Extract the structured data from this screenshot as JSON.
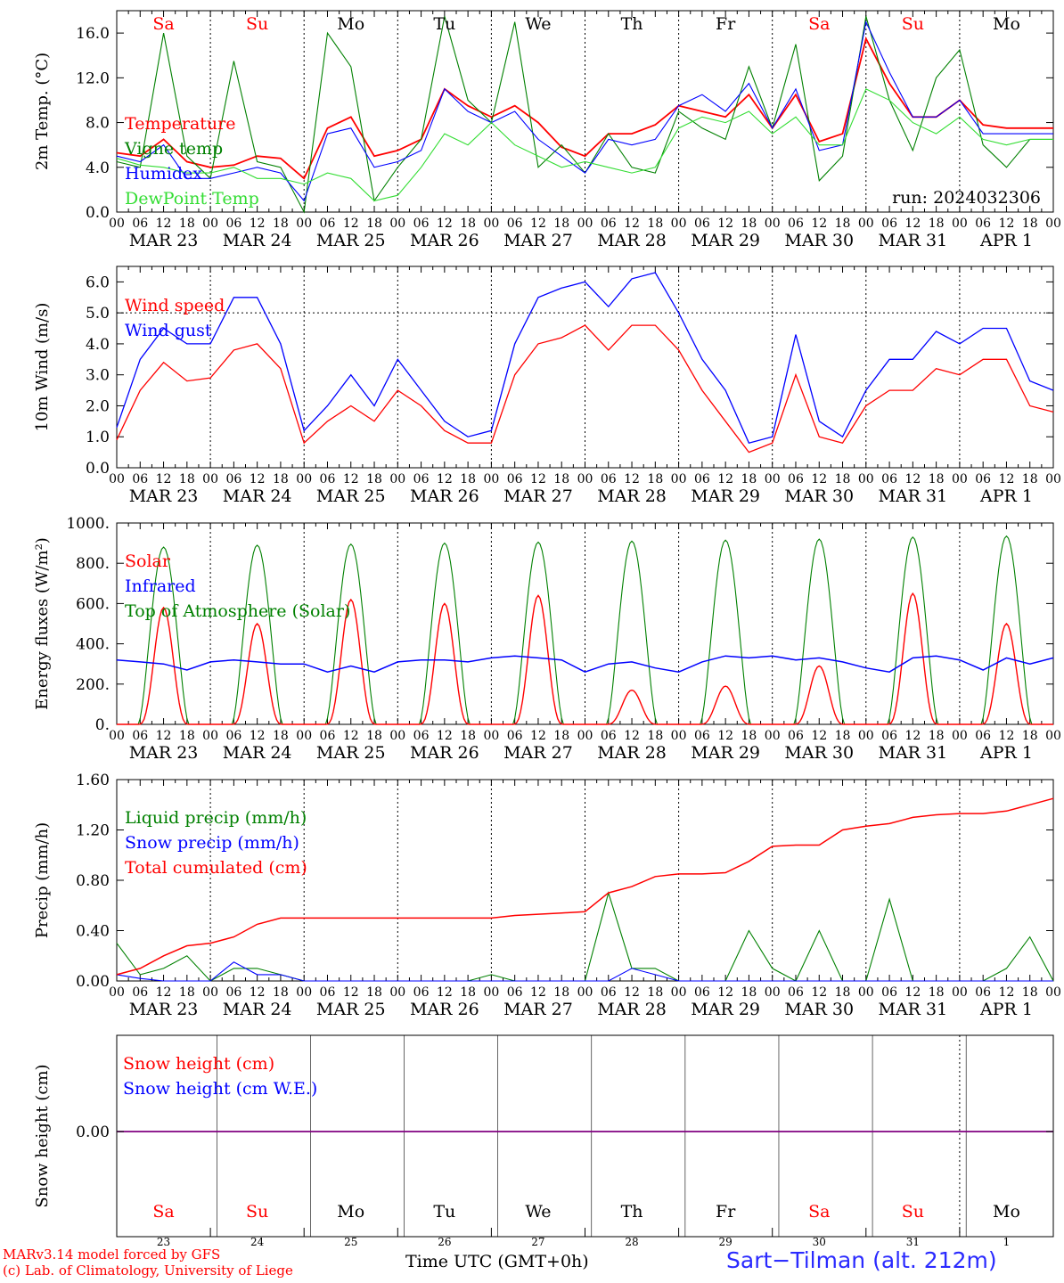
{
  "colors": {
    "red": "#ff0000",
    "green": "#008000",
    "blue": "#0000ff",
    "lightgreen": "#33dd33",
    "purple": "#800080",
    "black": "#000000"
  },
  "axis": {
    "hour_labels": [
      "00",
      "06",
      "12",
      "18"
    ],
    "day_labels": [
      "MAR 23",
      "MAR 24",
      "MAR 25",
      "MAR 26",
      "MAR 27",
      "MAR 28",
      "MAR 29",
      "MAR 30",
      "MAR 31",
      "APR  1"
    ],
    "weekdays": [
      {
        "label": "Sa",
        "color": "#ff0000"
      },
      {
        "label": "Su",
        "color": "#ff0000"
      },
      {
        "label": "Mo",
        "color": "#000000"
      },
      {
        "label": "Tu",
        "color": "#000000"
      },
      {
        "label": "We",
        "color": "#000000"
      },
      {
        "label": "Th",
        "color": "#000000"
      },
      {
        "label": "Fr",
        "color": "#000000"
      },
      {
        "label": "Sa",
        "color": "#ff0000"
      },
      {
        "label": "Su",
        "color": "#ff0000"
      },
      {
        "label": "Mo",
        "color": "#000000"
      }
    ],
    "day_numbers": [
      "23",
      "24",
      "25",
      "26",
      "27",
      "28",
      "29",
      "30",
      "31",
      "1"
    ]
  },
  "footer": {
    "model_line": "MARv3.14 model forced by GFS",
    "credit_line": "(c) Lab. of Climatology, University of Liege",
    "time_label": "Time UTC (GMT+0h)",
    "station": "Sart−Tilman (alt. 212m)"
  },
  "chart_data": [
    {
      "type": "line",
      "ylabel": "2m Temp. (°C)",
      "ylim": [
        0,
        18
      ],
      "yticks": [
        "0.0",
        "4.0",
        "8.0",
        "12.0",
        "16.0"
      ],
      "ytick_values": [
        0,
        4,
        8,
        12,
        16
      ],
      "annotation": "run: 2024032306",
      "x_hours": [
        0,
        6,
        12,
        18,
        24,
        30,
        36,
        42,
        48,
        54,
        60,
        66,
        72,
        78,
        84,
        90,
        96,
        102,
        108,
        114,
        120,
        126,
        132,
        138,
        144,
        150,
        156,
        162,
        168,
        174,
        180,
        186,
        192,
        198,
        204,
        210,
        216,
        222,
        228,
        234,
        240
      ],
      "series": [
        {
          "name": "Temperature",
          "color": "#ff0000",
          "values": [
            5.3,
            5.0,
            6.5,
            4.5,
            4.0,
            4.2,
            5.0,
            4.8,
            3.0,
            7.5,
            8.5,
            5.0,
            5.5,
            6.5,
            11.0,
            9.5,
            8.5,
            9.5,
            8.0,
            5.8,
            5.0,
            7.0,
            7.0,
            7.8,
            9.5,
            9.0,
            8.5,
            10.5,
            7.5,
            10.5,
            6.3,
            7.0,
            15.5,
            11.5,
            8.5,
            8.5,
            10.0,
            7.8,
            7.5,
            7.5,
            7.5
          ]
        },
        {
          "name": "Vigne temp",
          "color": "#008000",
          "values": [
            4.5,
            4.0,
            16.0,
            5.0,
            3.0,
            13.5,
            4.5,
            4.0,
            0.0,
            16.0,
            13.0,
            1.0,
            4.0,
            6.5,
            17.5,
            10.0,
            8.0,
            17.0,
            4.0,
            6.0,
            3.5,
            7.0,
            4.0,
            3.5,
            9.0,
            7.5,
            6.5,
            13.0,
            7.5,
            15.0,
            2.8,
            5.0,
            17.5,
            10.0,
            5.5,
            12.0,
            14.5,
            6.0,
            4.0,
            6.5,
            6.5
          ]
        },
        {
          "name": "Humidex",
          "color": "#0000ff",
          "values": [
            5.0,
            4.5,
            6.0,
            3.0,
            3.0,
            3.5,
            4.0,
            3.5,
            1.0,
            7.0,
            7.5,
            4.0,
            4.5,
            5.5,
            11.0,
            9.0,
            8.0,
            9.0,
            6.5,
            5.0,
            3.5,
            6.5,
            6.0,
            6.5,
            9.5,
            10.5,
            9.0,
            11.5,
            7.5,
            11.0,
            5.5,
            6.0,
            17.0,
            12.5,
            8.5,
            8.5,
            10.0,
            7.0,
            7.0,
            7.0,
            7.0
          ]
        },
        {
          "name": "DewPoint Temp",
          "color": "#33dd33",
          "values": [
            4.8,
            4.2,
            4.0,
            3.5,
            3.5,
            4.0,
            3.0,
            3.0,
            2.5,
            3.5,
            3.0,
            1.0,
            1.5,
            4.0,
            7.0,
            6.0,
            8.0,
            6.0,
            5.0,
            4.0,
            4.5,
            4.0,
            3.5,
            4.0,
            7.5,
            8.5,
            8.0,
            9.0,
            7.0,
            8.5,
            6.0,
            6.0,
            11.0,
            10.0,
            8.0,
            7.0,
            8.5,
            6.5,
            6.0,
            6.5,
            6.5
          ]
        }
      ]
    },
    {
      "type": "line",
      "ylabel": "10m Wind (m/s)",
      "ylim": [
        0,
        6.5
      ],
      "yticks": [
        "0.0",
        "1.0",
        "2.0",
        "3.0",
        "4.0",
        "5.0",
        "6.0"
      ],
      "ytick_values": [
        0,
        1,
        2,
        3,
        4,
        5,
        6
      ],
      "x_hours": [
        0,
        6,
        12,
        18,
        24,
        30,
        36,
        42,
        48,
        54,
        60,
        66,
        72,
        78,
        84,
        90,
        96,
        102,
        108,
        114,
        120,
        126,
        132,
        138,
        144,
        150,
        156,
        162,
        168,
        174,
        180,
        186,
        192,
        198,
        204,
        210,
        216,
        222,
        228,
        234,
        240
      ],
      "series": [
        {
          "name": "Wind speed",
          "color": "#ff0000",
          "values": [
            0.9,
            2.5,
            3.4,
            2.8,
            2.9,
            3.8,
            4.0,
            3.2,
            0.8,
            1.5,
            2.0,
            1.5,
            2.5,
            2.0,
            1.2,
            0.8,
            0.8,
            3.0,
            4.0,
            4.2,
            4.6,
            3.8,
            4.6,
            4.6,
            3.8,
            2.5,
            1.5,
            0.5,
            0.8,
            3.0,
            1.0,
            0.8,
            2.0,
            2.5,
            2.5,
            3.2,
            3.0,
            3.5,
            3.5,
            2.0,
            1.8
          ]
        },
        {
          "name": "Wind gust",
          "color": "#0000ff",
          "values": [
            1.3,
            3.5,
            4.5,
            4.0,
            4.0,
            5.5,
            5.5,
            4.0,
            1.2,
            2.0,
            3.0,
            2.0,
            3.5,
            2.5,
            1.5,
            1.0,
            1.2,
            4.0,
            5.5,
            5.8,
            6.0,
            5.2,
            6.1,
            6.3,
            5.0,
            3.5,
            2.5,
            0.8,
            1.0,
            4.3,
            1.5,
            1.0,
            2.5,
            3.5,
            3.5,
            4.4,
            4.0,
            4.5,
            4.5,
            2.8,
            2.5
          ]
        }
      ]
    },
    {
      "type": "line",
      "ylabel": "Energy fluxes (W/m²)",
      "ylim": [
        0,
        1000
      ],
      "yticks": [
        "0.",
        "200.",
        "400.",
        "600.",
        "800.",
        "1000."
      ],
      "ytick_values": [
        0,
        200,
        400,
        600,
        800,
        1000
      ],
      "series": [
        {
          "name": "Solar",
          "color": "#ff0000",
          "day_peaks": [
            580,
            500,
            620,
            600,
            640,
            170,
            190,
            290,
            650,
            500
          ]
        },
        {
          "name": "Infrared",
          "color": "#0000ff",
          "values": [
            320,
            310,
            300,
            270,
            310,
            320,
            310,
            300,
            300,
            260,
            290,
            260,
            310,
            320,
            320,
            310,
            330,
            340,
            330,
            320,
            260,
            300,
            310,
            280,
            260,
            310,
            340,
            330,
            340,
            320,
            330,
            310,
            280,
            260,
            330,
            340,
            320,
            270,
            330,
            300,
            330
          ]
        },
        {
          "name": "Top of Atmosphere (Solar)",
          "color": "#008000",
          "day_peaks": [
            880,
            890,
            895,
            900,
            905,
            910,
            915,
            920,
            930,
            935
          ]
        }
      ]
    },
    {
      "type": "line",
      "ylabel": "Precip (mm/h)",
      "ylim": [
        0,
        1.6
      ],
      "yticks": [
        "0.00",
        "0.40",
        "0.80",
        "1.20",
        "1.60"
      ],
      "ytick_values": [
        0,
        0.4,
        0.8,
        1.2,
        1.6
      ],
      "x_hours": [
        0,
        6,
        12,
        18,
        24,
        30,
        36,
        42,
        48,
        54,
        60,
        66,
        72,
        78,
        84,
        90,
        96,
        102,
        108,
        114,
        120,
        126,
        132,
        138,
        144,
        150,
        156,
        162,
        168,
        174,
        180,
        186,
        192,
        198,
        204,
        210,
        216,
        222,
        228,
        234,
        240
      ],
      "series": [
        {
          "name": "Liquid precip (mm/h)",
          "color": "#008000",
          "values": [
            0.3,
            0.05,
            0.1,
            0.2,
            0.0,
            0.1,
            0.1,
            0.05,
            0.0,
            0.0,
            0.0,
            0.0,
            0.0,
            0.0,
            0.0,
            0.0,
            0.05,
            0.0,
            0.0,
            0.0,
            0.0,
            0.7,
            0.1,
            0.1,
            0.0,
            0.0,
            0.0,
            0.4,
            0.1,
            0.0,
            0.4,
            0.0,
            0.0,
            0.65,
            0.0,
            0.0,
            0.0,
            0.0,
            0.1,
            0.35,
            0.0
          ]
        },
        {
          "name": "Snow precip (mm/h)",
          "color": "#0000ff",
          "values": [
            0.05,
            0.02,
            0.0,
            0.0,
            0.0,
            0.15,
            0.05,
            0.05,
            0.0,
            0.0,
            0.0,
            0.0,
            0.0,
            0.0,
            0.0,
            0.0,
            0.0,
            0.0,
            0.0,
            0.0,
            0.0,
            0.0,
            0.1,
            0.05,
            0.0,
            0.0,
            0.0,
            0.0,
            0.0,
            0.0,
            0.0,
            0.0,
            0.0,
            0.0,
            0.0,
            0.0,
            0.0,
            0.0,
            0.0,
            0.0,
            0.0
          ]
        },
        {
          "name": "Total cumulated (cm)",
          "color": "#ff0000",
          "values": [
            0.05,
            0.1,
            0.2,
            0.28,
            0.3,
            0.35,
            0.45,
            0.5,
            0.5,
            0.5,
            0.5,
            0.5,
            0.5,
            0.5,
            0.5,
            0.5,
            0.5,
            0.52,
            0.53,
            0.54,
            0.55,
            0.7,
            0.75,
            0.83,
            0.85,
            0.85,
            0.86,
            0.95,
            1.07,
            1.08,
            1.08,
            1.2,
            1.23,
            1.25,
            1.3,
            1.32,
            1.33,
            1.33,
            1.35,
            1.4,
            1.45
          ]
        }
      ]
    },
    {
      "type": "line",
      "ylabel": "Snow height (cm)",
      "yticks": [
        "0.00"
      ],
      "ytick_values": [
        0
      ],
      "series": [
        {
          "name": "Snow height (cm)",
          "color": "#ff0000",
          "values": [
            0,
            0
          ]
        },
        {
          "name": "Snow height (cm W.E.)",
          "color": "#0000ff",
          "values": [
            0,
            0
          ]
        }
      ]
    }
  ]
}
